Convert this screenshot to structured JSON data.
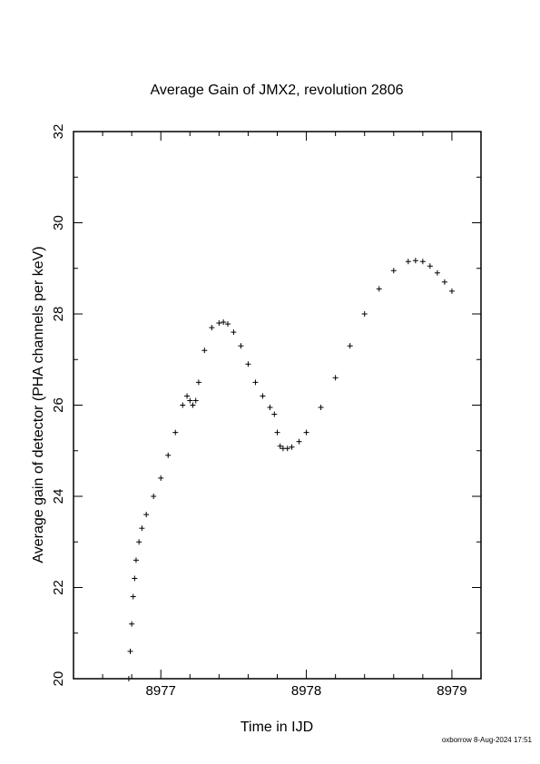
{
  "chart_data": {
    "type": "scatter",
    "title": "Average Gain of JMX2, revolution 2806",
    "xlabel": "Time in IJD",
    "ylabel": "Average gain of detector (PHA channels per keV)",
    "xlim": [
      8976.4,
      8979.2
    ],
    "ylim": [
      20,
      32
    ],
    "x_major_ticks": [
      8977,
      8978,
      8979
    ],
    "x_tick_labels": [
      "8977",
      "8978",
      "8979"
    ],
    "y_major_ticks": [
      20,
      22,
      24,
      26,
      28,
      30,
      32
    ],
    "y_tick_labels": [
      "20",
      "22",
      "24",
      "26",
      "28",
      "30",
      "32"
    ],
    "grid": false,
    "legend": "none",
    "marker": "plus",
    "color": "#000000",
    "series": [
      {
        "values_description_only": false,
        "x": [
          8976.78,
          8976.79,
          8976.8,
          8976.81,
          8976.82,
          8976.83,
          8976.85,
          8976.87,
          8976.9,
          8976.95,
          8977.0,
          8977.05,
          8977.1,
          8977.15,
          8977.18,
          8977.2,
          8977.22,
          8977.24,
          8977.26,
          8977.3,
          8977.35,
          8977.4,
          8977.43,
          8977.46,
          8977.5,
          8977.55,
          8977.6,
          8977.65,
          8977.7,
          8977.75,
          8977.78,
          8977.8,
          8977.82,
          8977.84,
          8977.87,
          8977.9,
          8977.95,
          8978.0,
          8978.1,
          8978.2,
          8978.3,
          8978.4,
          8978.5,
          8978.6,
          8978.7,
          8978.75,
          8978.8,
          8978.85,
          8978.9,
          8978.95,
          8979.0
        ],
        "y": [
          20.0,
          20.6,
          21.2,
          21.8,
          22.2,
          22.6,
          23.0,
          23.3,
          23.6,
          24.0,
          24.4,
          24.9,
          25.4,
          26.0,
          26.2,
          26.1,
          26.0,
          26.1,
          26.5,
          27.2,
          27.7,
          27.8,
          27.82,
          27.78,
          27.6,
          27.3,
          26.9,
          26.5,
          26.2,
          25.95,
          25.8,
          25.4,
          25.1,
          25.05,
          25.05,
          25.08,
          25.2,
          25.4,
          25.95,
          26.6,
          27.3,
          28.0,
          28.55,
          28.95,
          29.15,
          29.17,
          29.15,
          29.05,
          28.9,
          28.7,
          28.5
        ]
      }
    ]
  },
  "footer_text": "oxborrow  8-Aug-2024 17:51"
}
